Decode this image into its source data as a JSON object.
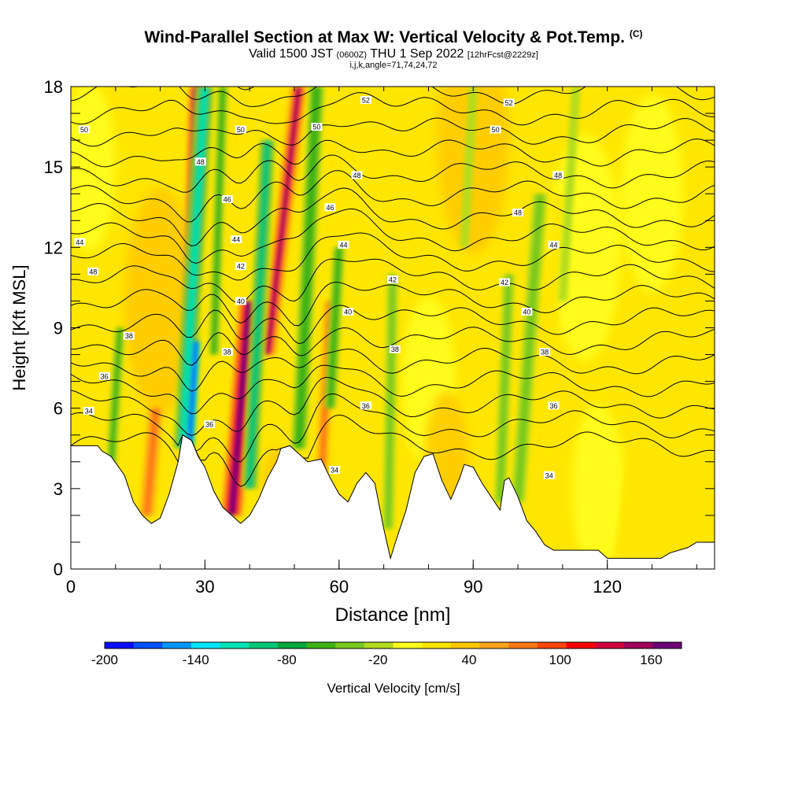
{
  "title": {
    "main": "Wind-Parallel Section at Max W: Vertical Velocity & Pot.Temp.",
    "copyright": "(C)",
    "valid_prefix": "Valid 1500 JST",
    "valid_z": "(0600Z)",
    "valid_date": "THU 1 Sep 2022",
    "forecast": "[12hrFcst@2229z]",
    "params": "i,j,k,angle=71,74,24,72"
  },
  "colors": {
    "scale": [
      "#0a0aff",
      "#0050ff",
      "#0096ff",
      "#00e6ff",
      "#00e6b4",
      "#00c878",
      "#00aa3c",
      "#3cb414",
      "#78c81e",
      "#b4dc1e",
      "#ffff1e",
      "#ffe600",
      "#ffc800",
      "#ffa51e",
      "#ff7814",
      "#ff460a",
      "#ff0000",
      "#d2003c",
      "#a0005a",
      "#6e0078"
    ]
  },
  "chart_data": {
    "type": "heatmap",
    "xlabel": "Distance [nm]",
    "ylabel": "Height [Kft MSL]",
    "xlim": [
      0,
      144
    ],
    "ylim": [
      0,
      18
    ],
    "x_ticks": [
      0,
      30,
      60,
      90,
      120
    ],
    "y_ticks": [
      0,
      3,
      6,
      9,
      12,
      15,
      18
    ],
    "colorbar": {
      "label": "Vertical Velocity [cm/s]",
      "min": -200,
      "max": 180,
      "step": 20,
      "tick_labels": [
        "-200",
        "-140",
        "-80",
        "-20",
        "40",
        "100",
        "160"
      ]
    },
    "updrafts": [
      {
        "x": 18,
        "w": 70
      },
      {
        "x": 27.5,
        "w": 175
      },
      {
        "x": 38,
        "w": 180
      },
      {
        "x": 50,
        "w": 160
      },
      {
        "x": 52,
        "w": 80
      },
      {
        "x": 107,
        "w": 30
      },
      {
        "x": 125,
        "w": 20
      },
      {
        "x": 136,
        "w": 15
      }
    ],
    "downdrafts": [
      {
        "x": 27.5,
        "w": -180
      },
      {
        "x": 42,
        "w": -80
      },
      {
        "x": 54,
        "w": -90
      },
      {
        "x": 59,
        "w": -60
      },
      {
        "x": 72,
        "w": -50
      },
      {
        "x": 97,
        "w": -40
      },
      {
        "x": 101,
        "w": -45
      },
      {
        "x": 11,
        "w": -40
      }
    ],
    "terrain": [
      {
        "x": 0,
        "h": 4.6
      },
      {
        "x": 6,
        "h": 4.6
      },
      {
        "x": 7,
        "h": 4.4
      },
      {
        "x": 9,
        "h": 4.2
      },
      {
        "x": 12,
        "h": 3.5
      },
      {
        "x": 14,
        "h": 2.5
      },
      {
        "x": 16,
        "h": 2.0
      },
      {
        "x": 18,
        "h": 1.7
      },
      {
        "x": 20,
        "h": 1.9
      },
      {
        "x": 22,
        "h": 2.8
      },
      {
        "x": 24,
        "h": 4.0
      },
      {
        "x": 25,
        "h": 5.0
      },
      {
        "x": 27,
        "h": 4.8
      },
      {
        "x": 28.5,
        "h": 4.2
      },
      {
        "x": 30,
        "h": 3.8
      },
      {
        "x": 32,
        "h": 2.9
      },
      {
        "x": 34,
        "h": 2.3
      },
      {
        "x": 36,
        "h": 2.0
      },
      {
        "x": 38,
        "h": 1.7
      },
      {
        "x": 40,
        "h": 2.0
      },
      {
        "x": 42,
        "h": 2.6
      },
      {
        "x": 44,
        "h": 3.4
      },
      {
        "x": 46,
        "h": 4.0
      },
      {
        "x": 47,
        "h": 4.5
      },
      {
        "x": 49,
        "h": 4.6
      },
      {
        "x": 51,
        "h": 4.3
      },
      {
        "x": 53,
        "h": 4.0
      },
      {
        "x": 56,
        "h": 4.1
      },
      {
        "x": 58,
        "h": 3.4
      },
      {
        "x": 60,
        "h": 2.8
      },
      {
        "x": 62,
        "h": 2.5
      },
      {
        "x": 64,
        "h": 3.2
      },
      {
        "x": 66,
        "h": 3.6
      },
      {
        "x": 68,
        "h": 3.2
      },
      {
        "x": 70,
        "h": 1.5
      },
      {
        "x": 71.5,
        "h": 0.4
      },
      {
        "x": 73,
        "h": 1.2
      },
      {
        "x": 75,
        "h": 2.2
      },
      {
        "x": 77,
        "h": 3.6
      },
      {
        "x": 79,
        "h": 4.2
      },
      {
        "x": 81,
        "h": 4.3
      },
      {
        "x": 83,
        "h": 3.3
      },
      {
        "x": 85,
        "h": 2.6
      },
      {
        "x": 87,
        "h": 3.4
      },
      {
        "x": 88,
        "h": 3.9
      },
      {
        "x": 90,
        "h": 3.8
      },
      {
        "x": 92,
        "h": 3.2
      },
      {
        "x": 94,
        "h": 2.7
      },
      {
        "x": 96,
        "h": 2.2
      },
      {
        "x": 97,
        "h": 3.3
      },
      {
        "x": 98,
        "h": 3.4
      },
      {
        "x": 100,
        "h": 2.7
      },
      {
        "x": 102,
        "h": 1.8
      },
      {
        "x": 104,
        "h": 1.4
      },
      {
        "x": 106,
        "h": 0.9
      },
      {
        "x": 108,
        "h": 0.7
      },
      {
        "x": 115,
        "h": 0.7
      },
      {
        "x": 118,
        "h": 0.7
      },
      {
        "x": 120,
        "h": 0.4
      },
      {
        "x": 132,
        "h": 0.4
      },
      {
        "x": 134,
        "h": 0.6
      },
      {
        "x": 138,
        "h": 0.8
      },
      {
        "x": 140,
        "h": 1.0
      },
      {
        "x": 144,
        "h": 1.0
      }
    ],
    "isentropes": {
      "levels": [
        34,
        35,
        36,
        37,
        38,
        39,
        40,
        41,
        42,
        43,
        44,
        45,
        46,
        47,
        48,
        49,
        50,
        51,
        52
      ],
      "labels": [
        {
          "text": "34",
          "x": 4,
          "y": 5.9
        },
        {
          "text": "36",
          "x": 7.5,
          "y": 7.2
        },
        {
          "text": "38",
          "x": 13,
          "y": 8.7
        },
        {
          "text": "36",
          "x": 31,
          "y": 5.4
        },
        {
          "text": "38",
          "x": 35,
          "y": 8.1
        },
        {
          "text": "40",
          "x": 38,
          "y": 10.0
        },
        {
          "text": "42",
          "x": 38,
          "y": 11.3
        },
        {
          "text": "44",
          "x": 37,
          "y": 12.3
        },
        {
          "text": "46",
          "x": 35,
          "y": 13.8
        },
        {
          "text": "48",
          "x": 29,
          "y": 15.2
        },
        {
          "text": "50",
          "x": 38,
          "y": 16.4
        },
        {
          "text": "44",
          "x": 2,
          "y": 12.2
        },
        {
          "text": "48",
          "x": 5,
          "y": 11.1
        },
        {
          "text": "50",
          "x": 3,
          "y": 16.4
        },
        {
          "text": "52",
          "x": 66,
          "y": 17.5
        },
        {
          "text": "50",
          "x": 55,
          "y": 16.5
        },
        {
          "text": "48",
          "x": 64,
          "y": 14.7
        },
        {
          "text": "46",
          "x": 58,
          "y": 13.5
        },
        {
          "text": "44",
          "x": 61,
          "y": 12.1
        },
        {
          "text": "40",
          "x": 62,
          "y": 9.6
        },
        {
          "text": "42",
          "x": 72,
          "y": 10.8
        },
        {
          "text": "38",
          "x": 72.5,
          "y": 8.2
        },
        {
          "text": "36",
          "x": 66,
          "y": 6.1
        },
        {
          "text": "34",
          "x": 59,
          "y": 3.7
        },
        {
          "text": "52",
          "x": 98,
          "y": 17.4
        },
        {
          "text": "50",
          "x": 95,
          "y": 16.4
        },
        {
          "text": "48",
          "x": 109,
          "y": 14.7
        },
        {
          "text": "48",
          "x": 100,
          "y": 13.3
        },
        {
          "text": "44",
          "x": 108,
          "y": 12.1
        },
        {
          "text": "42",
          "x": 97,
          "y": 10.7
        },
        {
          "text": "40",
          "x": 102,
          "y": 9.6
        },
        {
          "text": "38",
          "x": 106,
          "y": 8.1
        },
        {
          "text": "36",
          "x": 108,
          "y": 6.1
        },
        {
          "text": "34",
          "x": 107,
          "y": 3.5
        }
      ]
    }
  }
}
